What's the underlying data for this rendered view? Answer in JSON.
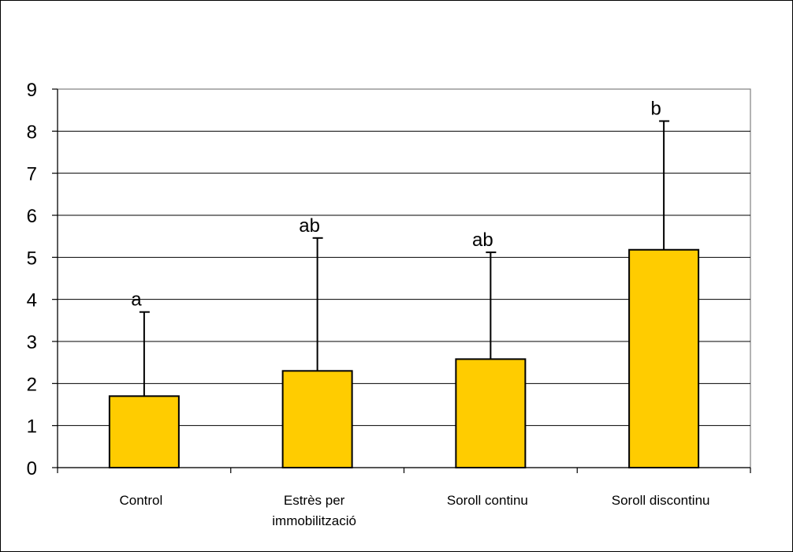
{
  "chart_data": {
    "type": "bar",
    "categories": [
      "Control",
      "Estrès per immobilització",
      "Soroll continu",
      "Soroll discontinu"
    ],
    "category_lines": [
      [
        "Control"
      ],
      [
        "Estrès per",
        "immobilització"
      ],
      [
        "Soroll continu"
      ],
      [
        "Soroll discontinu"
      ]
    ],
    "values": [
      1.7,
      2.3,
      2.58,
      5.18
    ],
    "error_upper": [
      3.7,
      5.46,
      5.12,
      8.24
    ],
    "significance_labels": [
      "a",
      "ab",
      "ab",
      "b"
    ],
    "ylim": [
      0,
      9
    ],
    "yticks": [
      0,
      1,
      2,
      3,
      4,
      5,
      6,
      7,
      8,
      9
    ],
    "grid": true,
    "bar_color": "#FFCC00",
    "plot_background": "#ffffff",
    "title": "",
    "xlabel": "",
    "ylabel": ""
  }
}
